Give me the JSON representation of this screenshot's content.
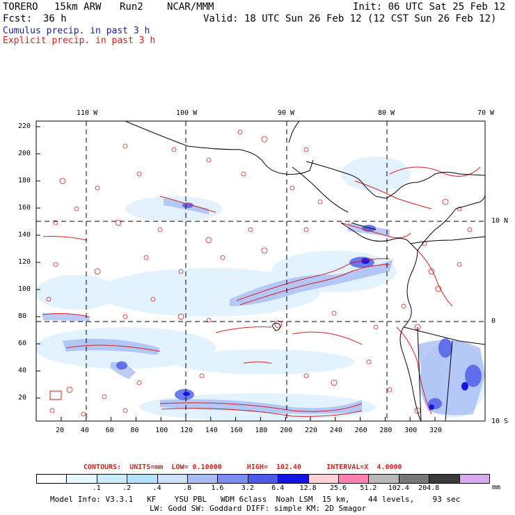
{
  "header": {
    "model": "TORERO",
    "resolution": "15km ARW",
    "run": "Run2",
    "org": "NCAR/MMM",
    "init_label": "Init: 06 UTC Sat 25 Feb 12",
    "fcst_label": "Fcst:",
    "fcst_value": "36 h",
    "valid_label": "Valid: 18 UTC Sun 26 Feb 12 (12 CST Sun 26 Feb 12)"
  },
  "legend": {
    "cumulus": "Cumulus precip. in past 3 h",
    "explicit": "Explicit precip. in past 3 h"
  },
  "map": {
    "top_ticks": [
      "110 W",
      "100 W",
      "90 W",
      "80 W",
      "70 W"
    ],
    "right_ticks": [
      "10 N",
      "0",
      "10 S"
    ],
    "y_ticks": [
      "220",
      "200",
      "180",
      "160",
      "140",
      "120",
      "100",
      "80",
      "60",
      "40",
      "20"
    ],
    "x_ticks": [
      "20",
      "40",
      "60",
      "80",
      "100",
      "120",
      "140",
      "160",
      "180",
      "200",
      "220",
      "240",
      "260",
      "280",
      "300",
      "320"
    ]
  },
  "contours": {
    "text": "CONTOURS:  UNITS=mm  LOW= 0.10000      HIGH=  102.40      INTERVAL=X  4.0000"
  },
  "colorbar": {
    "colors": [
      "#ffffff",
      "#e6f6ff",
      "#c9ecff",
      "#b4e2fa",
      "#cfe2ff",
      "#a8bcf5",
      "#7d8cf0",
      "#4b5ae6",
      "#1414e6",
      "#ffd0d6",
      "#ff7fb0",
      "#b8b8b8",
      "#787878",
      "#3a3a3a",
      "#d8a8f0"
    ],
    "labels": [
      ".1",
      ".2",
      ".4",
      ".8",
      "1.6",
      "3.2",
      "6.4",
      "12.8",
      "25.6",
      "51.2",
      "102.4",
      "204.8"
    ],
    "units": "mm"
  },
  "footer": {
    "line1": "Model Info: V3.3.1   KF    YSU PBL   WDM 6class  Noah LSM  15 km,    44 levels,    93 sec",
    "line2": "LW: Godd SW: Goddard DIFF: simple KM: 2D Smagor"
  }
}
